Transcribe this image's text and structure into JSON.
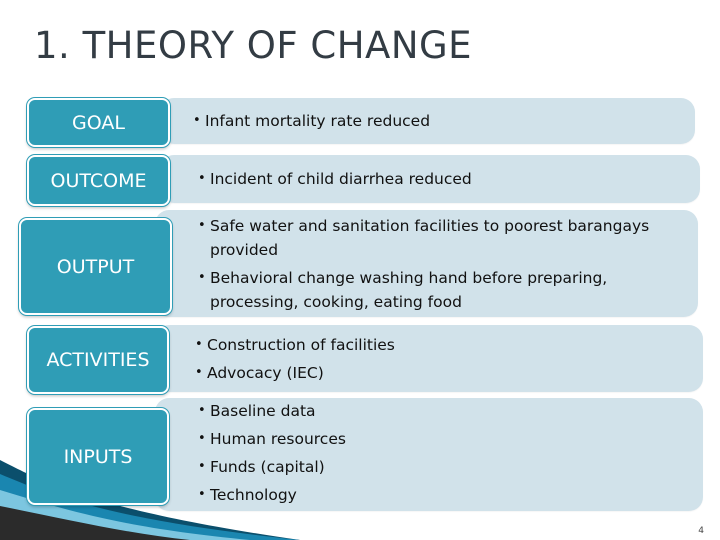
{
  "slide": {
    "title": "1. THEORY OF CHANGE",
    "page_number": "4"
  },
  "colors": {
    "box_fill": "#2f9db6",
    "panel_fill": "#d1e2ea",
    "title_text": "#333c44"
  },
  "rows": [
    {
      "label": "GOAL",
      "items": [
        "Infant mortality rate reduced"
      ]
    },
    {
      "label": "OUTCOME",
      "items": [
        "Incident of child diarrhea reduced"
      ]
    },
    {
      "label": "OUTPUT",
      "items": [
        "Safe water and sanitation facilities to poorest barangays provided",
        "Behavioral change washing hand before preparing, processing, cooking, eating food"
      ]
    },
    {
      "label": "ACTIVITIES",
      "items": [
        "Construction of facilities",
        "Advocacy (IEC)"
      ]
    },
    {
      "label": "INPUTS",
      "items": [
        "Baseline data",
        "Human resources",
        "Funds (capital)",
        "Technology"
      ]
    }
  ]
}
